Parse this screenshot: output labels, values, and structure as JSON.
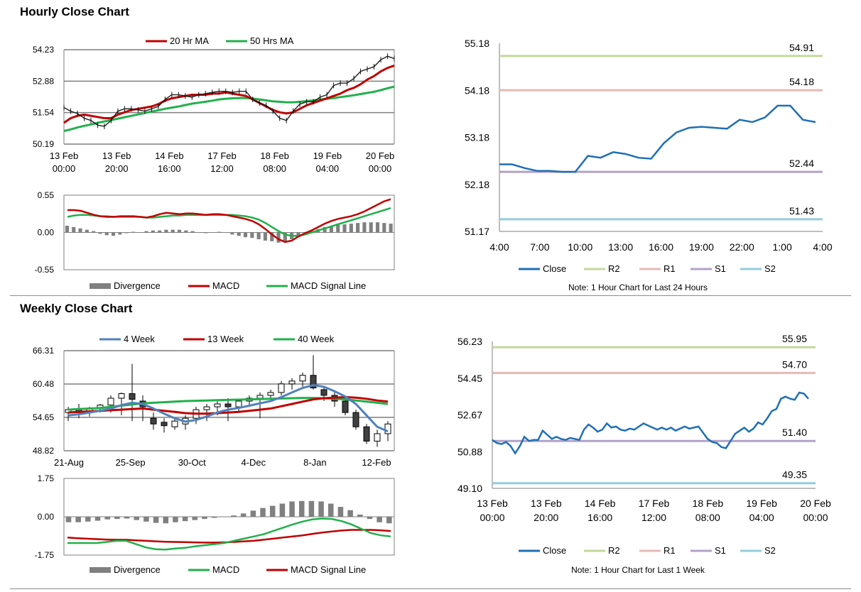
{
  "sections": {
    "hourly_title": "Hourly Close Chart",
    "weekly_title": "Weekly Close Chart"
  },
  "colors": {
    "ma20": "#c00000",
    "ma50": "#21b04b",
    "price": "#111111",
    "divergence": "#808080",
    "macd_red": "#c00000",
    "signal_green": "#21b04b",
    "close": "#1f6fb5",
    "r2": "#c4d79b",
    "r1": "#e6b9b8",
    "s1": "#b3a2c7",
    "s2": "#93cddd",
    "wk4": "#4f81bd",
    "wk13": "#c00000",
    "wk40": "#21b04b",
    "grid": "#7f7f7f"
  },
  "chart_data": [
    {
      "id": "hourly-price",
      "type": "line",
      "title": "Hourly Close Chart",
      "legend": [
        "20 Hr MA",
        "50 Hrs MA"
      ],
      "yticks": [
        "54.23",
        "52.88",
        "51.54",
        "50.19"
      ],
      "ylim": [
        50.19,
        54.23
      ],
      "xticks": [
        [
          "13 Feb",
          "00:00"
        ],
        [
          "13 Feb",
          "20:00"
        ],
        [
          "14 Feb",
          "16:00"
        ],
        [
          "17 Feb",
          "12:00"
        ],
        [
          "18 Feb",
          "08:00"
        ],
        [
          "19 Feb",
          "04:00"
        ],
        [
          "20 Feb",
          "00:00"
        ]
      ],
      "price": [
        51.75,
        51.6,
        51.5,
        51.3,
        51.2,
        51.0,
        50.95,
        51.2,
        51.6,
        51.7,
        51.7,
        51.65,
        51.6,
        51.7,
        51.8,
        52.1,
        52.3,
        52.3,
        52.25,
        52.2,
        52.3,
        52.35,
        52.4,
        52.45,
        52.45,
        52.4,
        52.45,
        52.45,
        52.1,
        51.95,
        51.85,
        51.6,
        51.3,
        51.2,
        51.6,
        51.9,
        52.0,
        52.0,
        52.2,
        52.3,
        52.7,
        52.8,
        52.8,
        53.0,
        53.3,
        53.4,
        53.5,
        53.8,
        53.95,
        53.85
      ],
      "ma20": [
        51.1,
        51.3,
        51.4,
        51.45,
        51.4,
        51.35,
        51.3,
        51.3,
        51.45,
        51.55,
        51.65,
        51.7,
        51.75,
        51.8,
        51.9,
        52.05,
        52.15,
        52.2,
        52.25,
        52.3,
        52.3,
        52.3,
        52.35,
        52.35,
        52.4,
        52.35,
        52.3,
        52.25,
        52.1,
        51.95,
        51.8,
        51.65,
        51.55,
        51.5,
        51.55,
        51.7,
        51.85,
        51.95,
        52.05,
        52.15,
        52.25,
        52.35,
        52.5,
        52.6,
        52.75,
        52.95,
        53.1,
        53.3,
        53.45,
        53.55
      ],
      "ma50": [
        50.75,
        50.82,
        50.9,
        50.97,
        51.03,
        51.1,
        51.16,
        51.22,
        51.28,
        51.34,
        51.4,
        51.46,
        51.52,
        51.58,
        51.64,
        51.7,
        51.75,
        51.8,
        51.86,
        51.92,
        51.96,
        52.0,
        52.05,
        52.1,
        52.13,
        52.15,
        52.16,
        52.16,
        52.14,
        52.1,
        52.06,
        52.02,
        52.0,
        51.98,
        51.98,
        52.0,
        52.03,
        52.06,
        52.1,
        52.13,
        52.16,
        52.2,
        52.24,
        52.28,
        52.33,
        52.38,
        52.43,
        52.5,
        52.58,
        52.65
      ]
    },
    {
      "id": "hourly-macd",
      "type": "bar",
      "legend": [
        "Divergence",
        "MACD",
        "MACD Signal Line"
      ],
      "yticks": [
        "0.55",
        "0.00",
        "-0.55"
      ],
      "ylim": [
        -0.55,
        0.55
      ],
      "divergence": [
        0.1,
        0.08,
        0.06,
        0.04,
        0.02,
        -0.02,
        -0.04,
        -0.05,
        -0.03,
        -0.01,
        0.01,
        0.0,
        0.02,
        0.03,
        0.03,
        0.04,
        0.04,
        0.04,
        0.03,
        0.02,
        0.0,
        -0.01,
        0.0,
        0.01,
        0.0,
        -0.03,
        -0.05,
        -0.07,
        -0.08,
        -0.1,
        -0.12,
        -0.13,
        -0.15,
        -0.14,
        -0.1,
        -0.06,
        -0.02,
        0.02,
        0.05,
        0.08,
        0.1,
        0.11,
        0.12,
        0.13,
        0.14,
        0.15,
        0.15,
        0.15,
        0.14,
        0.13
      ],
      "macd": [
        0.33,
        0.33,
        0.32,
        0.29,
        0.26,
        0.24,
        0.23,
        0.23,
        0.24,
        0.24,
        0.24,
        0.23,
        0.22,
        0.24,
        0.27,
        0.29,
        0.28,
        0.27,
        0.28,
        0.28,
        0.27,
        0.26,
        0.27,
        0.27,
        0.26,
        0.24,
        0.22,
        0.2,
        0.17,
        0.12,
        0.05,
        -0.03,
        -0.1,
        -0.14,
        -0.12,
        -0.06,
        -0.01,
        0.03,
        0.08,
        0.13,
        0.17,
        0.2,
        0.22,
        0.24,
        0.27,
        0.31,
        0.36,
        0.41,
        0.46,
        0.49
      ],
      "signal": [
        0.23,
        0.25,
        0.26,
        0.26,
        0.25,
        0.24,
        0.24,
        0.23,
        0.23,
        0.23,
        0.23,
        0.23,
        0.22,
        0.22,
        0.23,
        0.24,
        0.25,
        0.25,
        0.26,
        0.26,
        0.26,
        0.26,
        0.26,
        0.26,
        0.26,
        0.26,
        0.25,
        0.24,
        0.22,
        0.19,
        0.14,
        0.08,
        0.02,
        -0.03,
        -0.05,
        -0.05,
        -0.03,
        0.0,
        0.03,
        0.06,
        0.09,
        0.12,
        0.15,
        0.18,
        0.21,
        0.24,
        0.27,
        0.3,
        0.33,
        0.36
      ]
    },
    {
      "id": "hourly-pivot",
      "type": "line",
      "yticks": [
        "55.18",
        "54.18",
        "53.18",
        "52.18",
        "51.17"
      ],
      "ylim": [
        51.17,
        55.18
      ],
      "xticks": [
        "4:00",
        "7:00",
        "10:00",
        "13:00",
        "16:00",
        "19:00",
        "22:00",
        "1:00",
        "4:00"
      ],
      "levels": {
        "R2": 54.91,
        "R1": 54.18,
        "S1": 52.44,
        "S2": 51.43
      },
      "level_labels": {
        "R2": "54.91",
        "R1": "54.18",
        "S1": "52.44",
        "S2": "51.43"
      },
      "close": [
        52.6,
        52.6,
        52.52,
        52.46,
        52.46,
        52.44,
        52.44,
        52.78,
        52.74,
        52.86,
        52.82,
        52.74,
        52.72,
        53.05,
        53.28,
        53.38,
        53.4,
        53.38,
        53.36,
        53.55,
        53.5,
        53.6,
        53.85,
        53.85,
        53.55,
        53.5
      ],
      "legend": [
        "Close",
        "R2",
        "R1",
        "S1",
        "S2"
      ],
      "note": "Note: 1 Hour Chart for Last 24 Hours"
    },
    {
      "id": "weekly-price",
      "type": "line",
      "title": "Weekly Close Chart",
      "legend": [
        "4 Week",
        "13 Week",
        "40 Week"
      ],
      "yticks": [
        "66.31",
        "60.48",
        "54.65",
        "48.82"
      ],
      "ylim": [
        48.82,
        66.31
      ],
      "xticks": [
        "21-Aug",
        "25-Sep",
        "30-Oct",
        "4-Dec",
        "8-Jan",
        "12-Feb"
      ],
      "candles": [
        [
          55.5,
          56.5,
          54.0,
          56.0
        ],
        [
          56.0,
          57.0,
          54.5,
          55.5
        ],
        [
          55.5,
          56.5,
          54.8,
          56.2
        ],
        [
          56.2,
          57.0,
          55.5,
          56.8
        ],
        [
          56.8,
          58.5,
          55.5,
          58.0
        ],
        [
          58.0,
          59.0,
          55.0,
          58.8
        ],
        [
          58.8,
          64.0,
          54.0,
          57.8
        ],
        [
          57.5,
          58.5,
          54.0,
          56.5
        ],
        [
          54.5,
          55.5,
          52.5,
          53.5
        ],
        [
          53.8,
          54.5,
          52.0,
          53.2
        ],
        [
          53.0,
          54.5,
          52.5,
          54.0
        ],
        [
          53.5,
          55.0,
          52.5,
          54.5
        ],
        [
          54.5,
          56.5,
          53.5,
          56.0
        ],
        [
          56.0,
          57.0,
          54.0,
          56.5
        ],
        [
          56.5,
          57.5,
          55.0,
          57.0
        ],
        [
          57.0,
          58.0,
          54.0,
          56.5
        ],
        [
          56.5,
          57.5,
          55.5,
          57.5
        ],
        [
          57.5,
          58.5,
          56.5,
          58.0
        ],
        [
          58.0,
          59.0,
          54.5,
          58.5
        ],
        [
          58.5,
          59.5,
          57.5,
          59.0
        ],
        [
          59.0,
          61.0,
          58.5,
          60.5
        ],
        [
          60.5,
          61.5,
          59.5,
          61.0
        ],
        [
          61.0,
          62.5,
          60.0,
          62.0
        ],
        [
          62.0,
          65.5,
          59.5,
          59.8
        ],
        [
          59.5,
          60.0,
          57.5,
          58.5
        ],
        [
          58.5,
          59.0,
          56.5,
          57.5
        ],
        [
          57.5,
          58.0,
          55.0,
          55.5
        ],
        [
          55.5,
          56.0,
          52.5,
          53.0
        ],
        [
          53.0,
          53.5,
          50.0,
          50.5
        ],
        [
          50.5,
          52.5,
          49.5,
          51.8
        ],
        [
          51.8,
          54.0,
          50.5,
          53.5
        ]
      ],
      "wk4": [
        55.0,
        55.2,
        55.5,
        55.8,
        56.2,
        56.8,
        57.2,
        57.0,
        56.2,
        55.3,
        54.5,
        53.9,
        54.2,
        54.8,
        55.5,
        56.0,
        56.3,
        56.7,
        57.1,
        57.5,
        58.2,
        59.0,
        59.8,
        60.3,
        60.0,
        59.2,
        58.3,
        57.0,
        55.0,
        53.0,
        52.2
      ],
      "wk13": [
        55.5,
        55.6,
        55.7,
        55.8,
        55.9,
        56.0,
        56.1,
        56.2,
        56.0,
        55.8,
        55.6,
        55.4,
        55.3,
        55.3,
        55.4,
        55.5,
        55.6,
        55.8,
        56.0,
        56.2,
        56.6,
        57.0,
        57.4,
        57.8,
        58.0,
        58.1,
        58.2,
        58.1,
        57.9,
        57.6,
        57.4
      ],
      "wk40": [
        56.0,
        56.1,
        56.2,
        56.3,
        56.5,
        56.7,
        56.9,
        57.1,
        57.2,
        57.3,
        57.4,
        57.5,
        57.55,
        57.6,
        57.65,
        57.7,
        57.75,
        57.8,
        57.85,
        57.9,
        57.95,
        58.0,
        58.05,
        58.05,
        58.0,
        57.9,
        57.8,
        57.6,
        57.4,
        57.2,
        57.0
      ]
    },
    {
      "id": "weekly-macd",
      "type": "bar",
      "legend": [
        "Divergence",
        "MACD",
        "MACD Signal Line"
      ],
      "yticks": [
        "1.75",
        "0.00",
        "-1.75"
      ],
      "ylim": [
        -1.75,
        1.75
      ],
      "divergence": [
        -0.25,
        -0.25,
        -0.22,
        -0.18,
        -0.12,
        -0.1,
        -0.08,
        -0.15,
        -0.22,
        -0.28,
        -0.3,
        -0.25,
        -0.2,
        -0.15,
        -0.1,
        -0.05,
        0.0,
        0.06,
        0.15,
        0.28,
        0.4,
        0.5,
        0.6,
        0.7,
        0.72,
        0.72,
        0.7,
        0.6,
        0.45,
        0.3,
        0.1,
        -0.1,
        -0.25,
        -0.3
      ],
      "macd": [
        -1.2,
        -1.2,
        -1.2,
        -1.2,
        -1.15,
        -1.1,
        -1.1,
        -1.25,
        -1.4,
        -1.48,
        -1.5,
        -1.45,
        -1.42,
        -1.35,
        -1.3,
        -1.25,
        -1.2,
        -1.1,
        -1.0,
        -0.9,
        -0.8,
        -0.65,
        -0.5,
        -0.35,
        -0.22,
        -0.12,
        -0.08,
        -0.1,
        -0.2,
        -0.35,
        -0.55,
        -0.75,
        -0.85,
        -0.9
      ],
      "signal": [
        -0.95,
        -0.98,
        -1.0,
        -1.02,
        -1.04,
        -1.05,
        -1.05,
        -1.08,
        -1.1,
        -1.12,
        -1.14,
        -1.15,
        -1.16,
        -1.17,
        -1.18,
        -1.18,
        -1.17,
        -1.15,
        -1.12,
        -1.1,
        -1.05,
        -1.0,
        -0.95,
        -0.9,
        -0.85,
        -0.78,
        -0.72,
        -0.67,
        -0.63,
        -0.6,
        -0.6,
        -0.6,
        -0.62,
        -0.65
      ]
    },
    {
      "id": "weekly-pivot",
      "type": "line",
      "yticks": [
        "56.23",
        "54.45",
        "52.67",
        "50.88",
        "49.10"
      ],
      "ylim": [
        49.1,
        56.23
      ],
      "xticks": [
        [
          "13 Feb",
          "00:00"
        ],
        [
          "13 Feb",
          "20:00"
        ],
        [
          "14 Feb",
          "16:00"
        ],
        [
          "17 Feb",
          "12:00"
        ],
        [
          "18 Feb",
          "08:00"
        ],
        [
          "19 Feb",
          "04:00"
        ],
        [
          "20 Feb",
          "00:00"
        ]
      ],
      "levels": {
        "R2": 55.95,
        "R1": 54.7,
        "S1": 51.4,
        "S2": 49.35
      },
      "level_labels": {
        "R2": "55.95",
        "R1": "54.70",
        "S1": "51.40",
        "S2": "49.35"
      },
      "close": [
        51.45,
        51.3,
        51.25,
        51.35,
        51.15,
        50.8,
        51.15,
        51.6,
        51.4,
        51.45,
        51.45,
        51.9,
        51.7,
        51.5,
        51.6,
        51.5,
        51.45,
        51.55,
        51.5,
        51.45,
        51.95,
        52.2,
        52.05,
        51.85,
        51.95,
        52.25,
        52.05,
        52.1,
        51.95,
        51.9,
        52.0,
        51.95,
        52.1,
        52.25,
        52.15,
        52.05,
        51.95,
        52.05,
        51.95,
        52.05,
        51.9,
        52.0,
        52.1,
        52.0,
        52.05,
        52.1,
        51.8,
        51.5,
        51.35,
        51.3,
        51.1,
        51.05,
        51.4,
        51.75,
        51.9,
        52.05,
        51.85,
        52.0,
        52.3,
        52.2,
        52.5,
        52.85,
        52.95,
        53.45,
        53.55,
        53.45,
        53.4,
        53.75,
        53.7,
        53.45
      ],
      "legend": [
        "Close",
        "R2",
        "R1",
        "S1",
        "S2"
      ],
      "note": "Note: 1 Hour Chart for Last 1 Week"
    }
  ]
}
